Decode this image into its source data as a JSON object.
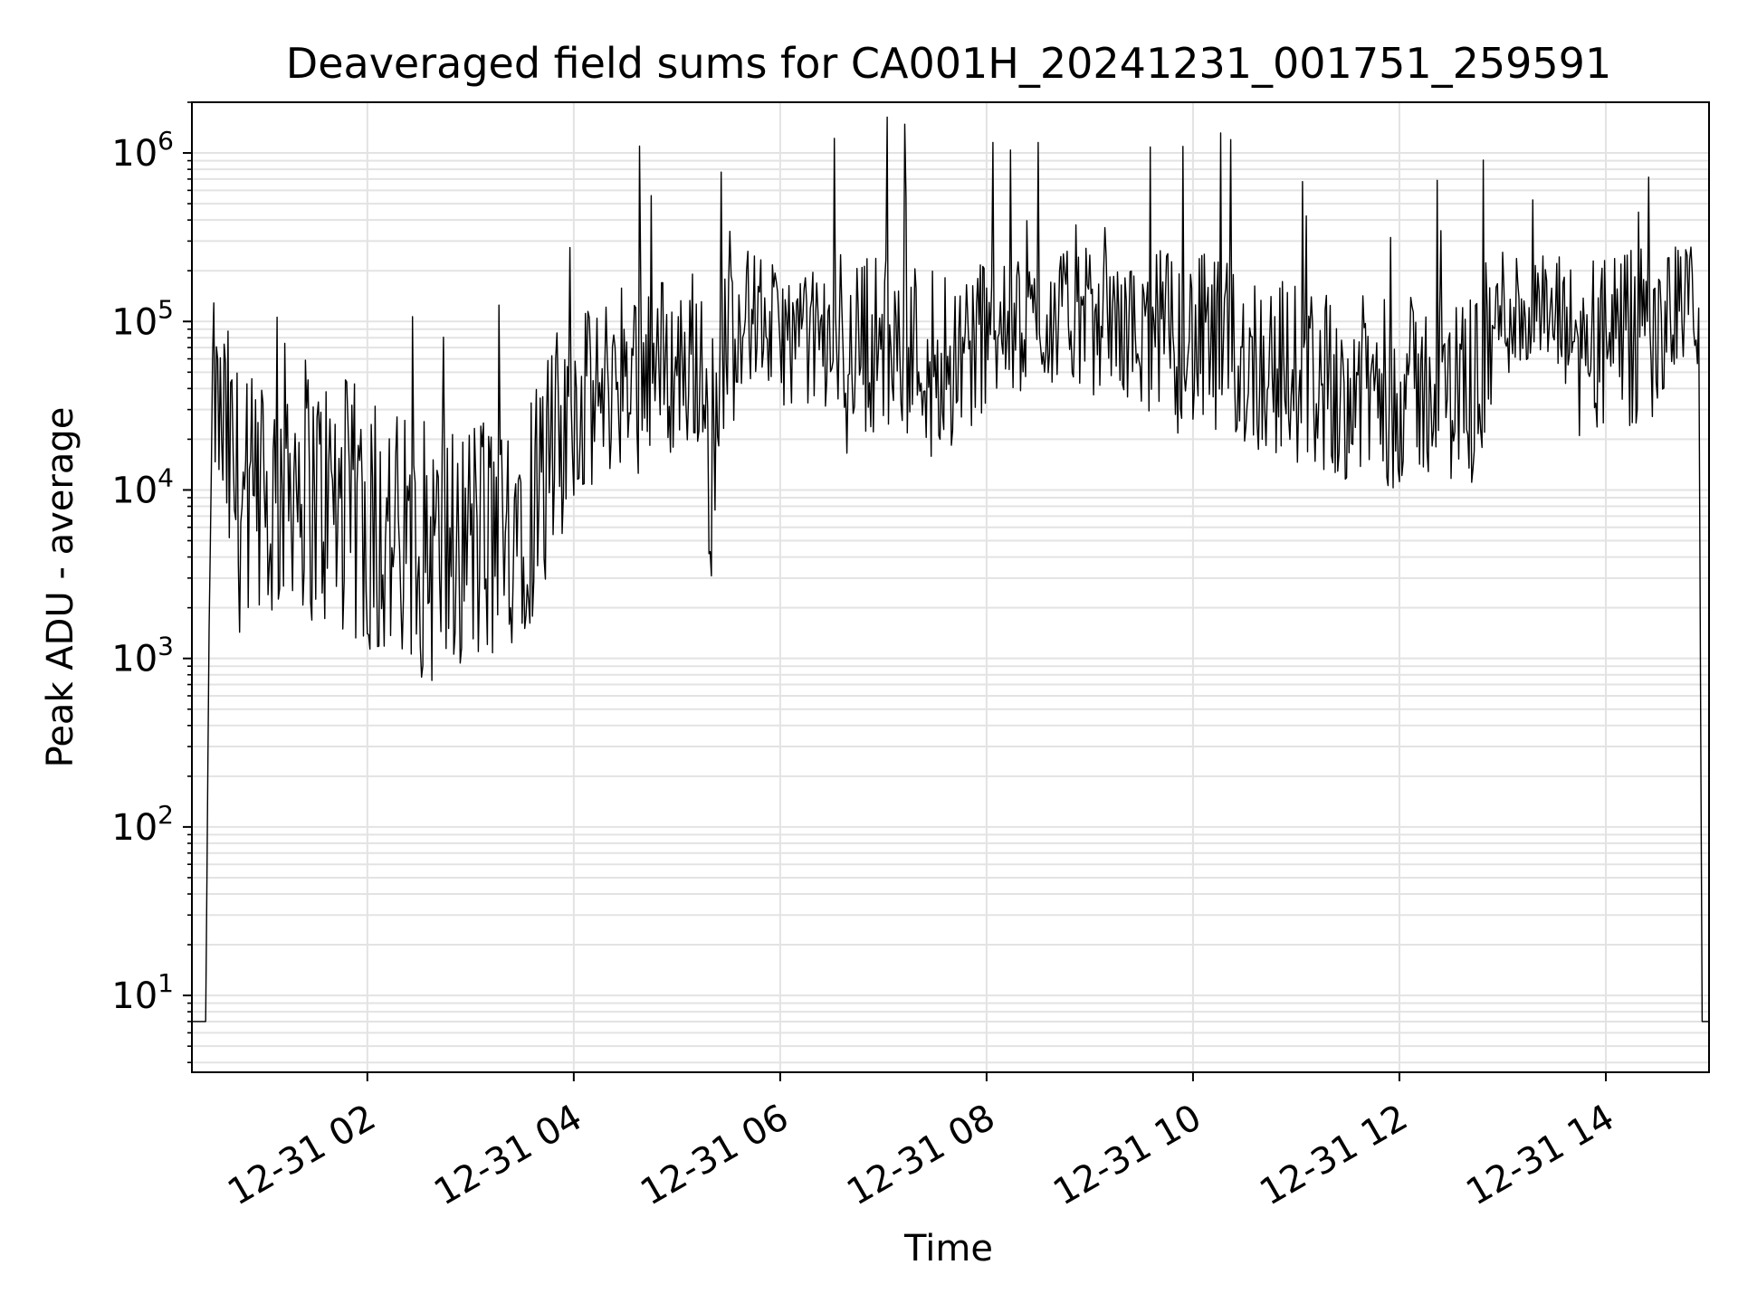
{
  "chart_data": {
    "type": "line",
    "title": "Deaveraged field sums for CA001H_20241231_001751_259591",
    "xlabel": "Time",
    "ylabel": "Peak ADU - average",
    "x_ticks": [
      "12-31 02",
      "12-31 04",
      "12-31 06",
      "12-31 08",
      "12-31 10",
      "12-31 12",
      "12-31 14"
    ],
    "y_ticks": [
      {
        "base": "10",
        "exp": "1"
      },
      {
        "base": "10",
        "exp": "2"
      },
      {
        "base": "10",
        "exp": "3"
      },
      {
        "base": "10",
        "exp": "4"
      },
      {
        "base": "10",
        "exp": "5"
      },
      {
        "base": "10",
        "exp": "6"
      }
    ],
    "xlim": [
      "2024-12-31T00:18",
      "2024-12-31T15:00"
    ],
    "ylim": [
      3.5,
      2000000
    ],
    "y_scale": "log",
    "grid": true,
    "line_color": "#000000",
    "grid_color": "#e3e3e3",
    "series": [
      {
        "x": [
          "2024-12-31T00:18",
          "2024-12-31T00:24",
          "2024-12-31T00:26",
          "2024-12-31T00:28",
          "2024-12-31T00:30",
          "2024-12-31T00:36",
          "2024-12-31T00:45",
          "2024-12-31T00:50",
          "2024-12-31T01:00",
          "2024-12-31T01:15",
          "2024-12-31T01:30",
          "2024-12-31T01:45",
          "2024-12-31T02:00",
          "2024-12-31T02:15",
          "2024-12-31T02:30",
          "2024-12-31T02:45",
          "2024-12-31T03:00",
          "2024-12-31T03:15",
          "2024-12-31T03:30",
          "2024-12-31T03:45",
          "2024-12-31T04:00",
          "2024-12-31T04:15",
          "2024-12-31T04:30",
          "2024-12-31T04:45",
          "2024-12-31T05:00",
          "2024-12-31T05:15",
          "2024-12-31T05:20",
          "2024-12-31T05:30",
          "2024-12-31T05:45",
          "2024-12-31T06:00",
          "2024-12-31T06:30",
          "2024-12-31T07:00",
          "2024-12-31T07:30",
          "2024-12-31T08:00",
          "2024-12-31T08:30",
          "2024-12-31T09:00",
          "2024-12-31T09:30",
          "2024-12-31T10:00",
          "2024-12-31T10:30",
          "2024-12-31T11:00",
          "2024-12-31T11:30",
          "2024-12-31T12:00",
          "2024-12-31T12:30",
          "2024-12-31T12:45",
          "2024-12-31T13:00",
          "2024-12-31T13:30",
          "2024-12-31T14:00",
          "2024-12-31T14:30",
          "2024-12-31T14:45",
          "2024-12-31T14:54",
          "2024-12-31T14:56",
          "2024-12-31T15:00"
        ],
        "y": [
          7,
          7,
          7,
          1500,
          40000,
          20000,
          9000,
          8000,
          6000,
          15000,
          9000,
          8000,
          6000,
          5000,
          4500,
          4000,
          5000,
          5000,
          9000,
          10000,
          30000,
          35000,
          60000,
          60000,
          50000,
          70000,
          12000,
          100000,
          110000,
          80000,
          80000,
          75000,
          65000,
          80000,
          100000,
          110000,
          80000,
          75000,
          60000,
          50000,
          40000,
          40000,
          40000,
          45000,
          120000,
          100000,
          70000,
          80000,
          140000,
          120000,
          7,
          7
        ]
      }
    ]
  }
}
